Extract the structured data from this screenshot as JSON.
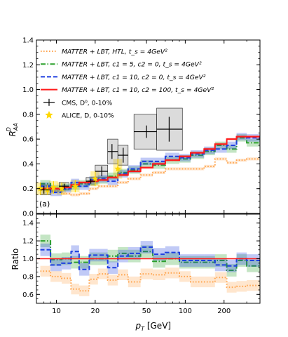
{
  "chart_data": {
    "type": "line",
    "x_scale": "log",
    "x_label_prefix": "p",
    "x_label_sub": "T",
    "x_label_suffix": " [GeV]",
    "x_ticks": [
      "10",
      "20",
      "50",
      "100",
      "200"
    ],
    "x_tick_values": [
      10,
      20,
      50,
      100,
      200
    ],
    "xlim": [
      7,
      380
    ],
    "bins": [
      7.5,
      9,
      11,
      13,
      15,
      18,
      21,
      25,
      30,
      36,
      45,
      56,
      70,
      90,
      110,
      140,
      170,
      210,
      250,
      300,
      380
    ],
    "colors": {
      "htl": "#ffa54f",
      "c1_5": "#2ca02c",
      "c1_10": "#1f3fe0",
      "c1_10_c2_100": "#ff1a1a",
      "cms": "#000000",
      "alice": "#ffd700"
    },
    "legend_position": "top-left",
    "top_panel": {
      "ylabel_main": "R",
      "ylabel_sub": "AA",
      "ylabel_sup": "D",
      "ylim": [
        0.0,
        1.4
      ],
      "y_ticks": [
        "0.0",
        "0.2",
        "0.4",
        "0.6",
        "0.8",
        "1.0",
        "1.2",
        "1.4"
      ],
      "y_tick_values": [
        0.0,
        0.2,
        0.4,
        0.6,
        0.8,
        1.0,
        1.2,
        1.4
      ],
      "panel_label": "(a)",
      "legend": [
        {
          "key": "htl",
          "label": "MATTER + LBT,  HTL,  t_s = 4GeV²",
          "style": "dotted"
        },
        {
          "key": "c1_5",
          "label": "MATTER + LBT,  c1 = 5, c2 = 0,  t_s = 4GeV²",
          "style": "dashdot"
        },
        {
          "key": "c1_10",
          "label": "MATTER + LBT,  c1 = 10, c2 = 0,  t_s = 4GeV²",
          "style": "dashed"
        },
        {
          "key": "c1_10_c2_100",
          "label": "MATTER + LBT,  c1 = 10, c2 = 100,  t_s = 4GeV²",
          "style": "solid"
        },
        {
          "key": "cms",
          "label": "CMS, D⁰, 0-10%",
          "style": "errorbar"
        },
        {
          "key": "alice",
          "label": "ALICE, D, 0-10%",
          "style": "star"
        }
      ],
      "series": [
        {
          "key": "htl",
          "band": 0.012,
          "values": [
            0.2,
            0.18,
            0.16,
            0.15,
            0.16,
            0.2,
            0.22,
            0.22,
            0.25,
            0.28,
            0.31,
            0.33,
            0.36,
            0.36,
            0.36,
            0.38,
            0.44,
            0.41,
            0.43,
            0.44
          ]
        },
        {
          "key": "c1_5",
          "band": 0.03,
          "values": [
            0.24,
            0.2,
            0.21,
            0.22,
            0.24,
            0.26,
            0.27,
            0.3,
            0.33,
            0.35,
            0.4,
            0.39,
            0.43,
            0.44,
            0.47,
            0.5,
            0.55,
            0.52,
            0.61,
            0.57
          ]
        },
        {
          "key": "c1_10",
          "band": 0.03,
          "values": [
            0.22,
            0.17,
            0.2,
            0.25,
            0.22,
            0.27,
            0.28,
            0.26,
            0.32,
            0.36,
            0.42,
            0.42,
            0.46,
            0.45,
            0.48,
            0.51,
            0.52,
            0.55,
            0.62,
            0.61
          ]
        },
        {
          "key": "c1_10_c2_100",
          "band": 0.01,
          "values": [
            0.2,
            0.2,
            0.21,
            0.23,
            0.25,
            0.26,
            0.27,
            0.29,
            0.31,
            0.34,
            0.37,
            0.4,
            0.43,
            0.46,
            0.49,
            0.52,
            0.56,
            0.6,
            0.62,
            0.62
          ]
        }
      ],
      "cms_points": [
        {
          "x": 8.0,
          "y": 0.19,
          "xlo": 7.5,
          "xhi": 9,
          "err": 0.03,
          "sys": 0.04
        },
        {
          "x": 11.5,
          "y": 0.22,
          "xlo": 10.5,
          "xhi": 12.5,
          "err": 0.02,
          "sys": 0.03
        },
        {
          "x": 18.5,
          "y": 0.26,
          "xlo": 17,
          "xhi": 20,
          "err": 0.02,
          "sys": 0.03
        },
        {
          "x": 22.5,
          "y": 0.34,
          "xlo": 20,
          "xhi": 25,
          "err": 0.04,
          "sys": 0.05
        },
        {
          "x": 27.0,
          "y": 0.5,
          "xlo": 25,
          "xhi": 30,
          "err": 0.06,
          "sys": 0.1
        },
        {
          "x": 33.0,
          "y": 0.47,
          "xlo": 30,
          "xhi": 36,
          "err": 0.06,
          "sys": 0.08
        },
        {
          "x": 50.0,
          "y": 0.66,
          "xlo": 40,
          "xhi": 60,
          "err": 0.05,
          "sys": 0.14
        },
        {
          "x": 75.0,
          "y": 0.68,
          "xlo": 60,
          "xhi": 95,
          "err": 0.1,
          "sys": 0.17
        }
      ],
      "alice_points": [
        {
          "x": 7.5,
          "y": 0.2,
          "err": 0.05
        },
        {
          "x": 8.5,
          "y": 0.19,
          "err": 0.04
        },
        {
          "x": 9.5,
          "y": 0.21,
          "err": 0.05
        },
        {
          "x": 11.0,
          "y": 0.2,
          "err": 0.05
        },
        {
          "x": 14.0,
          "y": 0.22,
          "err": 0.05
        },
        {
          "x": 20.0,
          "y": 0.28,
          "err": 0.06
        },
        {
          "x": 30.0,
          "y": 0.36,
          "err": 0.08
        }
      ]
    },
    "bottom_panel": {
      "ylabel": "Ratio",
      "ylim": [
        0.5,
        1.5
      ],
      "y_ticks": [
        "0.6",
        "0.8",
        "1.0",
        "1.2",
        "1.4"
      ],
      "y_tick_values": [
        0.6,
        0.8,
        1.0,
        1.2,
        1.4
      ],
      "reference_line": 1.0,
      "series": [
        {
          "key": "htl",
          "band": 0.06,
          "values": [
            0.86,
            0.8,
            0.78,
            0.66,
            0.64,
            0.77,
            0.83,
            0.76,
            0.82,
            0.74,
            0.83,
            0.82,
            0.84,
            0.8,
            0.74,
            0.74,
            0.79,
            0.68,
            0.69,
            0.7
          ]
        },
        {
          "key": "c1_5",
          "band": 0.07,
          "values": [
            1.2,
            0.99,
            1.0,
            0.96,
            0.96,
            1.0,
            1.0,
            1.03,
            1.06,
            1.03,
            1.08,
            0.97,
            1.0,
            0.96,
            0.96,
            0.96,
            0.98,
            0.87,
            0.98,
            0.92
          ]
        },
        {
          "key": "c1_10",
          "band": 0.07,
          "values": [
            1.1,
            0.93,
            0.95,
            1.08,
            0.88,
            1.04,
            1.04,
            0.9,
            1.03,
            1.06,
            1.13,
            1.05,
            1.07,
            0.98,
            0.98,
            0.98,
            0.93,
            0.92,
            1.0,
            0.98
          ]
        },
        {
          "key": "c1_10_c2_100",
          "band": 0.0,
          "values": [
            1.0,
            1.0,
            1.0,
            1.0,
            1.0,
            1.0,
            1.0,
            1.0,
            1.0,
            1.0,
            1.0,
            1.0,
            1.0,
            1.0,
            1.0,
            1.0,
            1.0,
            1.0,
            1.0,
            1.0
          ]
        }
      ]
    }
  }
}
